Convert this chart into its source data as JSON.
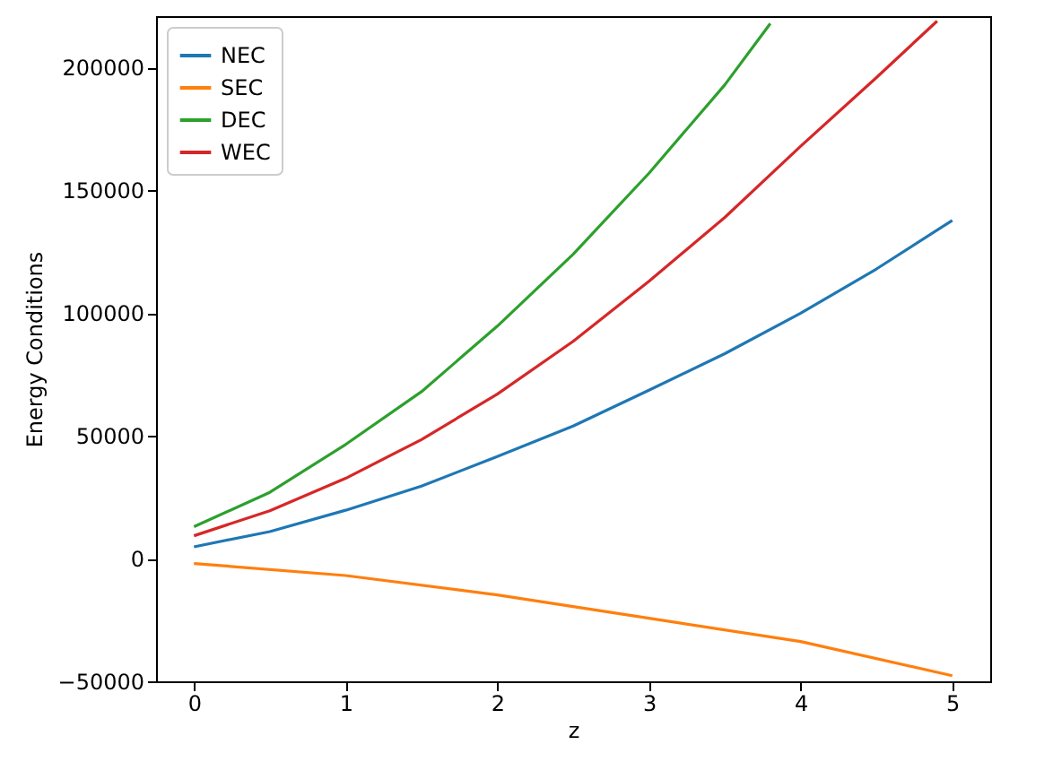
{
  "chart_data": {
    "type": "line",
    "xlabel": "z",
    "ylabel": "Energy Conditions",
    "xlim": [
      -0.25,
      5.25
    ],
    "ylim": [
      -50000,
      221000
    ],
    "xticks": [
      0,
      1,
      2,
      3,
      4,
      5
    ],
    "yticks": [
      -50000,
      0,
      50000,
      100000,
      150000,
      200000
    ],
    "grid": false,
    "legend": "top left",
    "series": [
      {
        "name": "NEC",
        "color": "#1f77b4",
        "x": [
          0,
          0.5,
          1,
          1.5,
          2,
          2.5,
          3,
          3.5,
          4,
          4.5,
          5
        ],
        "values": [
          4800,
          11000,
          19700,
          29500,
          41600,
          54000,
          68600,
          83500,
          100000,
          118000,
          137800
        ]
      },
      {
        "name": "SEC",
        "color": "#ff7f0e",
        "x": [
          0,
          1,
          2,
          3,
          4,
          5
        ],
        "values": [
          -2000,
          -6900,
          -14800,
          -24300,
          -33800,
          -47700
        ]
      },
      {
        "name": "DEC",
        "color": "#2ca02c",
        "x": [
          0,
          0.5,
          1,
          1.5,
          2,
          2.5,
          3,
          3.5,
          3.8
        ],
        "values": [
          13000,
          27000,
          46500,
          68000,
          94700,
          124000,
          157000,
          193000,
          218000
        ]
      },
      {
        "name": "WEC",
        "color": "#d62728",
        "x": [
          0,
          0.5,
          1,
          1.5,
          2,
          2.5,
          3,
          3.5,
          4,
          4.5,
          4.9
        ],
        "values": [
          9300,
          19500,
          32700,
          48500,
          67000,
          88500,
          113000,
          139000,
          168000,
          196000,
          219000
        ]
      }
    ]
  }
}
